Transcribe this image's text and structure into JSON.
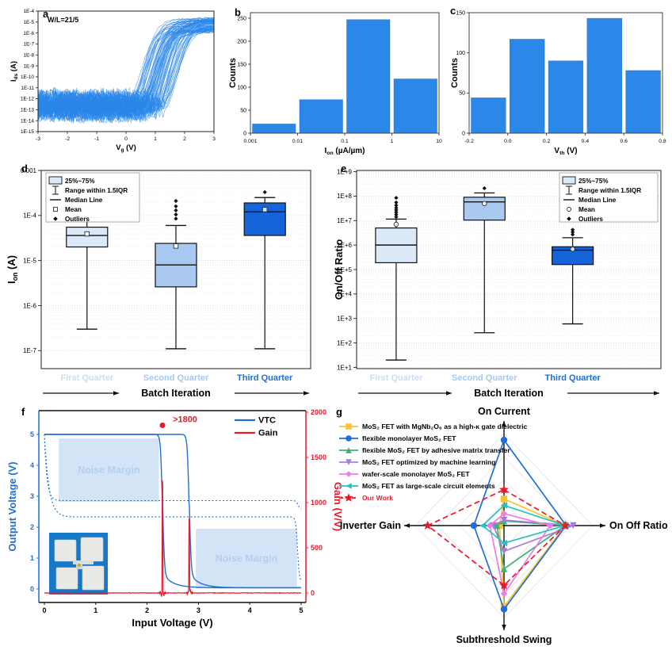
{
  "figure_background": "#ffffff",
  "chart_data": [
    {
      "id": "a",
      "panel_label": "a",
      "type": "line-ensemble",
      "annotation": "W/L=21/5",
      "xlabel": {
        "base": "V",
        "sub": "g",
        "unit": " (V)"
      },
      "ylabel": {
        "base": "I",
        "sub": "ds",
        "unit": " (A)"
      },
      "x_range": [
        -3,
        3
      ],
      "x_ticks": [
        -3,
        -2,
        -1,
        0,
        1,
        2,
        3
      ],
      "y_tick_exponents": [
        -4,
        -5,
        -6,
        -7,
        -8,
        -9,
        -10,
        -11,
        -12,
        -13,
        -14,
        -15
      ],
      "curve_color": "#2b87e8",
      "ensemble": {
        "count": 85,
        "vth_range": [
          0.1,
          1.4
        ],
        "on_exp_range": [
          -6.2,
          -4.9
        ],
        "off_exp_range": [
          -13.4,
          -11.8
        ]
      }
    },
    {
      "id": "b",
      "panel_label": "b",
      "type": "bar",
      "xlabel": {
        "base": "I",
        "sub": "on",
        "unit": " (µA/µm)"
      },
      "ylabel": "Counts",
      "bin_edges": [
        "0.001",
        "0.01",
        "0.1",
        "1",
        "10"
      ],
      "values": [
        20,
        73,
        247,
        118
      ],
      "y_ticks": [
        0,
        50,
        100,
        150,
        200,
        250
      ],
      "y_max": 262,
      "bar_color": "#2b87e8"
    },
    {
      "id": "c",
      "panel_label": "c",
      "type": "bar",
      "xlabel": {
        "base": "V",
        "sub": "th",
        "unit": " (V)"
      },
      "ylabel": "Counts",
      "bin_edges": [
        "-0.2",
        "0.0",
        "0.2",
        "0.4",
        "0.6",
        "0.8"
      ],
      "values": [
        44,
        117,
        90,
        143,
        78
      ],
      "y_ticks": [
        0,
        50,
        100,
        150
      ],
      "y_max": 150,
      "bar_color": "#2b87e8"
    },
    {
      "id": "d",
      "panel_label": "d",
      "type": "box",
      "xlabel": "Batch Iteration",
      "ylabel": {
        "base": "I",
        "sub": "on",
        "unit": " (A)"
      },
      "y_ticks": [
        {
          "exp": -3,
          "label": "0.001"
        },
        {
          "exp": -4,
          "label": "1E-4"
        },
        {
          "exp": -5,
          "label": "1E-5"
        },
        {
          "exp": -6,
          "label": "1E-6"
        },
        {
          "exp": -7,
          "label": "1E-7"
        }
      ],
      "y_range_exp": [
        -7.4,
        -3
      ],
      "legend_items": [
        "25%~75%",
        "Range within 1.5IQR",
        "Median Line",
        "Mean",
        "Outliers"
      ],
      "legend_anchor": "tl",
      "mean_marker": "square",
      "categories": [
        {
          "label": "First Quarter",
          "label_color": "#c8ddf6",
          "fill": "#dbe9f8",
          "q1": 2e-05,
          "q3": 5.5e-05,
          "median": 3.6e-05,
          "mean": 3.9e-05,
          "whisker_low": 3e-07,
          "whisker_high": 9e-05,
          "outliers": []
        },
        {
          "label": "Second Quarter",
          "label_color": "#a6c9f1",
          "fill": "#a9c9f1",
          "q1": 2.6e-06,
          "q3": 2.4e-05,
          "median": 8e-06,
          "mean": 2.1e-05,
          "whisker_low": 1.1e-07,
          "whisker_high": 6e-05,
          "outliers": [
            8.5e-05,
            0.000105,
            0.00013,
            0.00016,
            0.00021
          ]
        },
        {
          "label": "Third Quarter",
          "label_color": "#1e6fd9",
          "fill": "#1565d8",
          "q1": 3.6e-05,
          "q3": 0.00019,
          "median": 0.00012,
          "mean": 0.000135,
          "whisker_low": 1.1e-07,
          "whisker_high": 0.00025,
          "outliers": [
            0.00033
          ]
        }
      ]
    },
    {
      "id": "e",
      "panel_label": "e",
      "type": "box",
      "xlabel": "Batch Iteration",
      "ylabel": "On/Off Ratio",
      "y_ticks": [
        {
          "exp": 9,
          "label": "1E+9"
        },
        {
          "exp": 8,
          "label": "1E+8"
        },
        {
          "exp": 7,
          "label": "1E+7"
        },
        {
          "exp": 6,
          "label": "1E+6"
        },
        {
          "exp": 5,
          "label": "1E+5"
        },
        {
          "exp": 4,
          "label": "1E+4"
        },
        {
          "exp": 3,
          "label": "1E+3"
        },
        {
          "exp": 2,
          "label": "1E+2"
        },
        {
          "exp": 1,
          "label": "1E+1"
        }
      ],
      "y_range_exp": [
        0.95,
        9.05
      ],
      "legend_items": [
        "25%~75%",
        "Range within 1.5IQR",
        "Median Line",
        "Mean",
        "Outliers"
      ],
      "legend_anchor": "tr",
      "mean_marker": "circle",
      "categories": [
        {
          "label": "First Quarter",
          "label_color": "#c8ddf6",
          "fill": "#dbe9f8",
          "q1": 190000.0,
          "q3": 5000000.0,
          "median": 1000000.0,
          "mean": 7000000.0,
          "whisker_low": 20.0,
          "whisker_high": 11500000.0,
          "outliers": [
            14000000.0,
            17500000.0,
            22000000.0,
            27000000.0,
            33000000.0,
            42000000.0,
            55000000.0,
            85000000.0
          ]
        },
        {
          "label": "Second Quarter",
          "label_color": "#a6c9f1",
          "fill": "#a9c9f1",
          "q1": 10500000.0,
          "q3": 90000000.0,
          "median": 58000000.0,
          "mean": 50000000.0,
          "whisker_low": 260.0,
          "whisker_high": 135000000.0,
          "outliers": [
            210000000.0
          ]
        },
        {
          "label": "Third Quarter",
          "label_color": "#1e6fd9",
          "fill": "#1565d8",
          "q1": 160000.0,
          "q3": 850000.0,
          "median": 620000.0,
          "mean": 680000.0,
          "whisker_low": 600.0,
          "whisker_high": 2000000.0,
          "outliers": [
            2700000.0,
            3400000.0,
            4200000.0
          ]
        }
      ]
    },
    {
      "id": "f",
      "panel_label": "f",
      "type": "line-dual-axis",
      "xlabel": "Input Voltage (V)",
      "ylabel_left": "Output Voltage (V)",
      "ylabel_right": "Gain (V/V)",
      "x_ticks": [
        0,
        1,
        2,
        3,
        4,
        5
      ],
      "y_ticks_left": [
        0,
        1,
        2,
        3,
        4,
        5
      ],
      "y_ticks_right": [
        0,
        500,
        1000,
        1500,
        2000
      ],
      "left_color": "#1f6fd6",
      "right_color": "#e8192c",
      "legend": [
        {
          "label": "VTC",
          "color": "#1f6fd6"
        },
        {
          "label": "Gain",
          "color": "#e8192c"
        }
      ],
      "annotation": {
        "text": ">1800",
        "color": "#e8192c",
        "dot_x": 2.3,
        "dot_gain": 1855
      },
      "noise_margins": [
        {
          "label": "Noise Margin",
          "x1": 0.28,
          "x2": 2.23,
          "v1": 2.82,
          "v2": 4.87
        },
        {
          "label": "Noise Margin",
          "x1": 2.95,
          "x2": 4.92,
          "v1": 0.02,
          "v2": 1.95
        }
      ],
      "vtc_transitions": [
        2.3,
        2.82
      ],
      "dash_levels": [
        2.86,
        2.33
      ],
      "gain_peaks": [
        {
          "x": 2.3,
          "value": 1850
        },
        {
          "x": 2.82,
          "value": 1260
        }
      ],
      "vdd": 5
    },
    {
      "id": "g",
      "panel_label": "g",
      "type": "radar",
      "axes": [
        "On Current",
        "On Off Ratio",
        "Subthreshold Swing",
        "Inverter Gain"
      ],
      "grid_levels": [
        0.25,
        0.5,
        0.75,
        1
      ],
      "series": [
        {
          "name": "MoS₂ FET with MgNb₂O₆ as a high-κ gate dielectric",
          "color": "#f5c531",
          "marker": "square",
          "values": [
            0.29,
            0.69,
            0.88,
            0.05
          ]
        },
        {
          "name": "flexible monolayer MoS₂ FET",
          "color": "#1f6fd6",
          "marker": "circle",
          "values": [
            0.93,
            0.7,
            0.91,
            0.34
          ]
        },
        {
          "name": "flexible MoS₂ FET by adhesive matrix transfer",
          "color": "#3cb371",
          "marker": "triangle-up",
          "values": [
            0.05,
            0.69,
            0.47,
            0.08
          ]
        },
        {
          "name": "MoS₂ FET optimized by machine learning",
          "color": "#a77bdb",
          "marker": "triangle-down",
          "values": [
            0.06,
            0.78,
            0.28,
            0.12
          ]
        },
        {
          "name": "wafer-scale monolayer MoS₂ FET",
          "color": "#ee7ce8",
          "marker": "diamond",
          "values": [
            0.13,
            0.52,
            0.74,
            0.16
          ]
        },
        {
          "name": "MoS₂ FET as large-scale circuit elements",
          "color": "#25c4c4",
          "marker": "triangle-left",
          "values": [
            0.22,
            0.69,
            0.19,
            0.24
          ]
        },
        {
          "name": "Our Work",
          "color": "#e8192c",
          "marker": "star",
          "values": [
            0.39,
            0.69,
            0.65,
            0.86
          ],
          "dashed": true
        }
      ]
    }
  ]
}
